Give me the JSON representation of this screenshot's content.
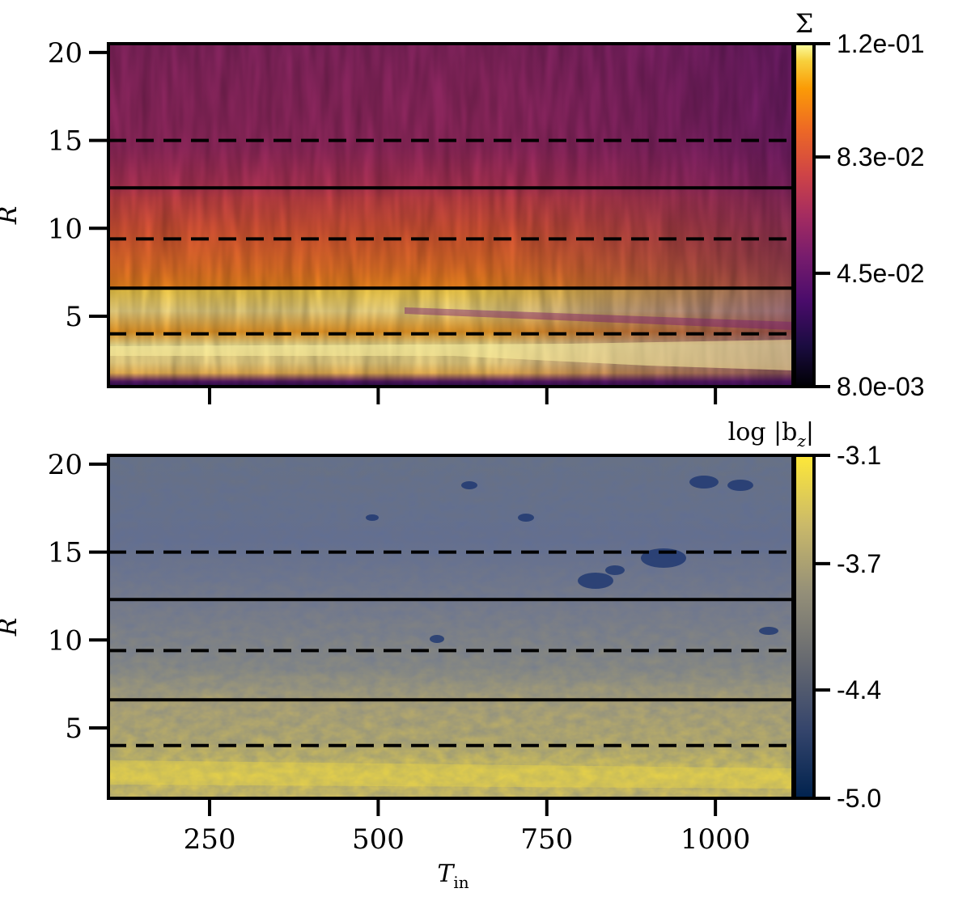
{
  "chart_data": [
    {
      "type": "heatmap",
      "panel": "top",
      "quantity": "surface density",
      "colorbar_label": "Σ",
      "colormap": "inferno",
      "colorbar_ticks": [
        "1.2e-01",
        "8.3e-02",
        "4.5e-02",
        "8.0e-03"
      ],
      "colorbar_values": [
        0.12,
        0.083,
        0.045,
        0.008
      ],
      "ylabel": "R",
      "xlabel": "",
      "xlim": [
        100,
        1115
      ],
      "ylim": [
        1,
        20.5
      ],
      "yticks": [
        "5",
        "10",
        "15",
        "20"
      ],
      "ytick_values": [
        5,
        10,
        15,
        20
      ],
      "xticks_shown_as_labels": false,
      "solid_lines_R": [
        6.6,
        12.3
      ],
      "dashed_lines_R": [
        4.0,
        9.4,
        15.0
      ],
      "description": "Bright bands of high density inside R≈6.6 that slowly narrow with time; intermediate density between R≈6.6 and 12.3; low density beyond."
    },
    {
      "type": "heatmap",
      "panel": "bottom",
      "quantity": "vertical magnetic field",
      "colorbar_label": "log |b_z|",
      "colormap": "cividis",
      "colorbar_ticks": [
        "-3.1",
        "-3.7",
        "-4.4",
        "-5.0"
      ],
      "colorbar_values": [
        -3.1,
        -3.7,
        -4.4,
        -5.0
      ],
      "ylabel": "R",
      "xlabel": "T_in",
      "xlim": [
        100,
        1115
      ],
      "ylim": [
        1,
        20.5
      ],
      "xticks": [
        "250",
        "500",
        "750",
        "1000"
      ],
      "xtick_values": [
        250,
        500,
        750,
        1000
      ],
      "yticks": [
        "5",
        "10",
        "15",
        "20"
      ],
      "ytick_values": [
        5,
        10,
        15,
        20
      ],
      "solid_lines_R": [
        6.6,
        12.3
      ],
      "dashed_lines_R": [
        4.0,
        9.4,
        15.0
      ],
      "description": "Strong field (yellow) at small radii, weaker field (blue) at large radii with dark patches at late times."
    }
  ],
  "labels": {
    "top_colorbar_title": "Σ",
    "bottom_colorbar_title_main": "log |b",
    "bottom_colorbar_title_sub": "z",
    "bottom_colorbar_title_end": "|",
    "ylabel": "R",
    "xlabel_main": "T",
    "xlabel_sub": "in"
  }
}
